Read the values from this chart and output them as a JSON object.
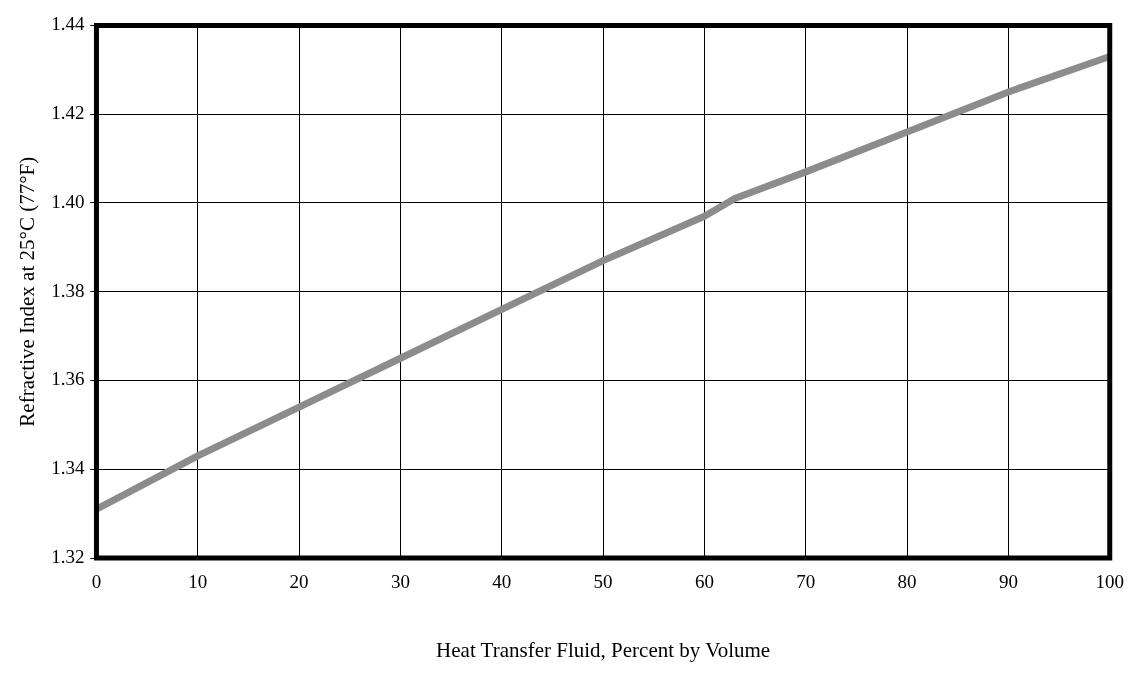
{
  "chart_data": {
    "type": "line",
    "xlabel": "Heat Transfer Fluid, Percent by Volume",
    "ylabel": "Refractive Index at 25°C (77°F)",
    "x": [
      0,
      10,
      20,
      30,
      40,
      50,
      60,
      63,
      70,
      80,
      90,
      100
    ],
    "series": [
      {
        "color": "#8c8c8c",
        "values": [
          1.331,
          1.343,
          1.354,
          1.365,
          1.376,
          1.387,
          1.397,
          1.401,
          1.407,
          1.416,
          1.425,
          1.433
        ]
      }
    ],
    "xlim": [
      0,
      100
    ],
    "xticks": [
      0,
      10,
      20,
      30,
      40,
      50,
      60,
      70,
      80,
      90,
      100
    ],
    "ylim": [
      1.32,
      1.44
    ],
    "yticks": [
      {
        "value": 1.32,
        "label": "1.32"
      },
      {
        "value": 1.34,
        "label": "1.34"
      },
      {
        "value": 1.36,
        "label": "1.36"
      },
      {
        "value": 1.38,
        "label": "1.38"
      },
      {
        "value": 1.4,
        "label": "1.40"
      },
      {
        "value": 1.42,
        "label": "1.42"
      },
      {
        "value": 1.44,
        "label": "1.44"
      }
    ],
    "grid": true,
    "legend": false,
    "marker": "none",
    "line_style": "solid"
  }
}
